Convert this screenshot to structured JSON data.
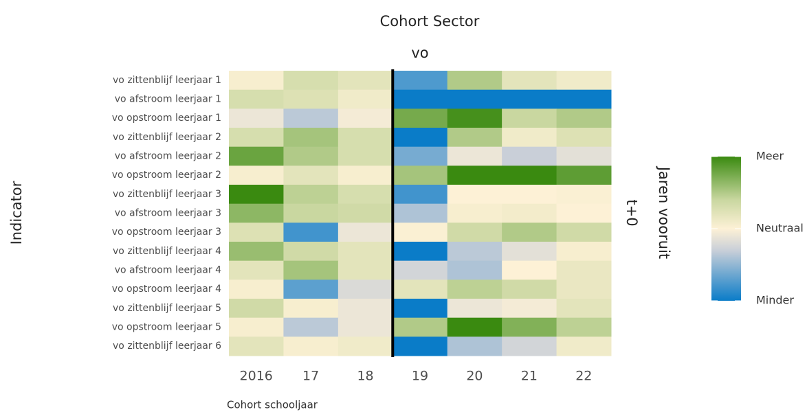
{
  "chart_data": {
    "type": "heatmap",
    "title": "Cohort Sector",
    "facet_label": "vo",
    "row_strip_label": "t+0",
    "right_axis_label": "Jaren vooruit",
    "y_label": "Indicator",
    "x_label": "Cohort schooljaar",
    "categories": [
      "2016",
      "17",
      "18",
      "19",
      "20",
      "21",
      "22"
    ],
    "rows": [
      "vo zittenblijf leerjaar 1",
      "vo afstroom leerjaar 1",
      "vo opstroom leerjaar 1",
      "vo zittenblijf leerjaar 2",
      "vo afstroom leerjaar 2",
      "vo opstroom leerjaar 2",
      "vo zittenblijf leerjaar 3",
      "vo afstroom leerjaar 3",
      "vo opstroom leerjaar 3",
      "vo zittenblijf leerjaar 4",
      "vo afstroom leerjaar 4",
      "vo opstroom leerjaar 4",
      "vo zittenblijf leerjaar 5",
      "vo opstroom leerjaar 5",
      "vo zittenblijf leerjaar 6"
    ],
    "values": [
      [
        0.05,
        0.3,
        0.2,
        -0.75,
        0.5,
        0.2,
        0.1
      ],
      [
        0.3,
        0.25,
        0.1,
        -1,
        -1,
        -1,
        -1
      ],
      [
        -0.1,
        -0.35,
        -0.05,
        0.75,
        0.95,
        0.4,
        0.5
      ],
      [
        0.3,
        0.55,
        0.3,
        -1,
        0.5,
        0.1,
        0.25
      ],
      [
        0.8,
        0.5,
        0.3,
        -0.6,
        -0.1,
        -0.3,
        -0.15
      ],
      [
        0.05,
        0.2,
        0.05,
        0.55,
        1,
        1,
        0.85
      ],
      [
        1,
        0.45,
        0.3,
        -0.8,
        0,
        0,
        0.02
      ],
      [
        0.65,
        0.4,
        0.35,
        -0.4,
        0.05,
        0.08,
        0
      ],
      [
        0.25,
        -0.8,
        -0.1,
        0.02,
        0.35,
        0.5,
        0.35
      ],
      [
        0.6,
        0.35,
        0.2,
        -1,
        -0.35,
        -0.15,
        0.05
      ],
      [
        0.2,
        0.55,
        0.2,
        -0.25,
        -0.4,
        0,
        0.15
      ],
      [
        0.05,
        -0.7,
        -0.2,
        0.2,
        0.45,
        0.35,
        0.15
      ],
      [
        0.35,
        0.05,
        -0.1,
        -1,
        -0.1,
        -0.05,
        0.2
      ],
      [
        0.05,
        -0.35,
        -0.1,
        0.5,
        1,
        0.7,
        0.45
      ],
      [
        0.2,
        0.05,
        0.1,
        -1,
        -0.4,
        -0.25,
        0.1
      ]
    ],
    "divider_index": 3,
    "colorscale": [
      {
        "value": -1,
        "color": "#0a7cc8"
      },
      {
        "value": -0.3,
        "color": "#c9cfd8"
      },
      {
        "value": 0,
        "color": "#fdf1d6"
      },
      {
        "value": 0.4,
        "color": "#c9d7a0"
      },
      {
        "value": 1,
        "color": "#3a8a10"
      }
    ],
    "clim": [
      -1,
      1
    ],
    "cticks": [
      {
        "value": -1,
        "label": "Minder"
      },
      {
        "value": 0,
        "label": "Neutraal"
      },
      {
        "value": 1,
        "label": "Meer"
      }
    ]
  }
}
